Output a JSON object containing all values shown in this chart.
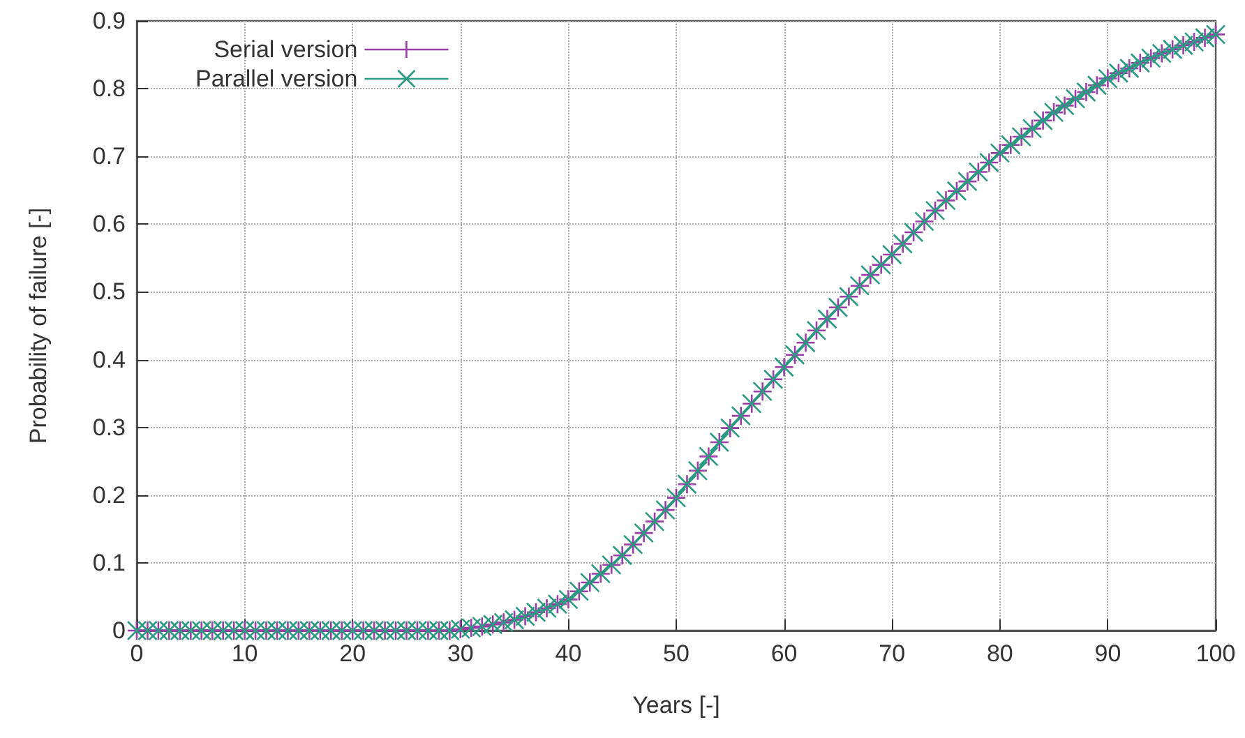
{
  "chart_data": {
    "type": "line",
    "xlabel": "Years [-]",
    "ylabel": "Probability of failure [-]",
    "x": [
      0,
      1,
      2,
      3,
      4,
      5,
      6,
      7,
      8,
      9,
      10,
      11,
      12,
      13,
      14,
      15,
      16,
      17,
      18,
      19,
      20,
      21,
      22,
      23,
      24,
      25,
      26,
      27,
      28,
      29,
      30,
      31,
      32,
      33,
      34,
      35,
      36,
      37,
      38,
      39,
      40,
      41,
      42,
      43,
      44,
      45,
      46,
      47,
      48,
      49,
      50,
      51,
      52,
      53,
      54,
      55,
      56,
      57,
      58,
      59,
      60,
      61,
      62,
      63,
      64,
      65,
      66,
      67,
      68,
      69,
      70,
      71,
      72,
      73,
      74,
      75,
      76,
      77,
      78,
      79,
      80,
      81,
      82,
      83,
      84,
      85,
      86,
      87,
      88,
      89,
      90,
      91,
      92,
      93,
      94,
      95,
      96,
      97,
      98,
      99,
      100
    ],
    "series": [
      {
        "name": "Serial version",
        "color": "#9b3fa8",
        "marker": "plus",
        "values": [
          0,
          0,
          0,
          0,
          0,
          0,
          0,
          0,
          0,
          0,
          0,
          0,
          0,
          0,
          0,
          0,
          0,
          0,
          0,
          0,
          0,
          0,
          0,
          0,
          0,
          0,
          0,
          0,
          0,
          0,
          0.002,
          0.004,
          0.006,
          0.009,
          0.012,
          0.016,
          0.021,
          0.027,
          0.033,
          0.039,
          0.046,
          0.058,
          0.071,
          0.084,
          0.097,
          0.111,
          0.127,
          0.144,
          0.161,
          0.178,
          0.196,
          0.216,
          0.236,
          0.257,
          0.278,
          0.299,
          0.317,
          0.335,
          0.353,
          0.371,
          0.389,
          0.407,
          0.425,
          0.443,
          0.46,
          0.477,
          0.493,
          0.509,
          0.525,
          0.54,
          0.555,
          0.571,
          0.588,
          0.604,
          0.62,
          0.635,
          0.649,
          0.663,
          0.677,
          0.691,
          0.705,
          0.717,
          0.729,
          0.741,
          0.753,
          0.765,
          0.775,
          0.785,
          0.795,
          0.805,
          0.815,
          0.823,
          0.83,
          0.838,
          0.845,
          0.852,
          0.858,
          0.864,
          0.869,
          0.875,
          0.88
        ]
      },
      {
        "name": "Parallel version",
        "color": "#2a9a83",
        "marker": "cross",
        "values": [
          0,
          0,
          0,
          0,
          0,
          0,
          0,
          0,
          0,
          0,
          0,
          0,
          0,
          0,
          0,
          0,
          0,
          0,
          0,
          0,
          0,
          0,
          0,
          0,
          0,
          0,
          0,
          0,
          0,
          0,
          0.002,
          0.004,
          0.006,
          0.009,
          0.012,
          0.016,
          0.021,
          0.027,
          0.033,
          0.039,
          0.046,
          0.058,
          0.071,
          0.084,
          0.097,
          0.111,
          0.127,
          0.144,
          0.161,
          0.178,
          0.196,
          0.216,
          0.236,
          0.257,
          0.278,
          0.299,
          0.317,
          0.335,
          0.353,
          0.371,
          0.389,
          0.407,
          0.425,
          0.443,
          0.46,
          0.477,
          0.493,
          0.509,
          0.525,
          0.54,
          0.555,
          0.571,
          0.588,
          0.604,
          0.62,
          0.635,
          0.649,
          0.663,
          0.677,
          0.691,
          0.705,
          0.717,
          0.729,
          0.741,
          0.753,
          0.765,
          0.775,
          0.785,
          0.795,
          0.805,
          0.815,
          0.823,
          0.83,
          0.838,
          0.845,
          0.852,
          0.858,
          0.864,
          0.869,
          0.875,
          0.88
        ]
      }
    ],
    "xlim": [
      0,
      100
    ],
    "xticks": [
      0,
      10,
      20,
      30,
      40,
      50,
      60,
      70,
      80,
      90,
      100
    ],
    "ylim": [
      0,
      0.9
    ],
    "yticks": [
      0,
      0.1,
      0.2,
      0.3,
      0.4,
      0.5,
      0.6,
      0.7,
      0.8,
      0.9
    ],
    "grid": true,
    "legend": "top left",
    "line_style": "solid"
  }
}
